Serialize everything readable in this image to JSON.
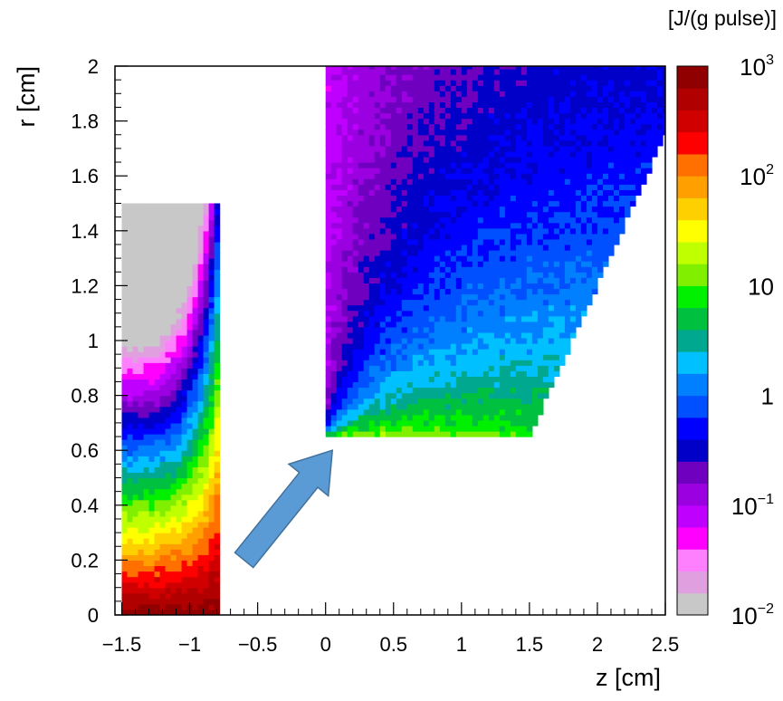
{
  "chart_data": {
    "type": "heatmap",
    "xlabel": "z [cm]",
    "ylabel": "r [cm]",
    "xlim": [
      -1.55,
      2.5
    ],
    "ylim": [
      0,
      2
    ],
    "x_ticks": [
      "−1.5",
      "−1",
      "−0.5",
      "0",
      "0.5",
      "1",
      "1.5",
      "2",
      "2.5"
    ],
    "x_tick_values": [
      -1.5,
      -1,
      -0.5,
      0,
      0.5,
      1,
      1.5,
      2,
      2.5
    ],
    "y_ticks": [
      "0",
      "0.2",
      "0.4",
      "0.6",
      "0.8",
      "1",
      "1.2",
      "1.4",
      "1.6",
      "1.8",
      "2"
    ],
    "y_tick_values": [
      0,
      0.2,
      0.4,
      0.6,
      0.8,
      1,
      1.2,
      1.4,
      1.6,
      1.8,
      2
    ],
    "colorbar": {
      "unit_label": "[J/(g pulse)]",
      "scale": "log",
      "range": [
        0.01,
        1000
      ],
      "labels": [
        {
          "base": "10",
          "exp": "3",
          "value": 1000
        },
        {
          "base": "10",
          "exp": "2",
          "value": 100
        },
        {
          "base": "10",
          "exp": "",
          "value": 10
        },
        {
          "base": "1",
          "exp": "",
          "value": 1
        },
        {
          "base": "10",
          "exp": "−1",
          "value": 0.1
        },
        {
          "base": "10",
          "exp": "−2",
          "value": 0.01
        }
      ],
      "colors": [
        "#c8c8c8",
        "#e0a0e0",
        "#ff80ff",
        "#ff00ff",
        "#c000ff",
        "#9b00e0",
        "#7000c0",
        "#0000c8",
        "#0000ff",
        "#0050ff",
        "#0080ff",
        "#00c0ff",
        "#00a890",
        "#00c040",
        "#00f000",
        "#80f000",
        "#c0ff00",
        "#ffff00",
        "#ffd000",
        "#ffa000",
        "#ff7000",
        "#ff0000",
        "#d00000",
        "#b00000",
        "#900000"
      ]
    },
    "regions": [
      {
        "name": "",
        "z_range": [
          -1.5,
          -0.8
        ],
        "r_range": [
          0,
          1.5
        ],
        "description_levels": "max near r=0 (~10^3), decreasing with r to ~10^-1 at r=1.5"
      },
      {
        "name": "",
        "z_range": [
          0,
          2.5
        ],
        "r_range": [
          0.65,
          2
        ],
        "edge": "lower-right boundary from (1.5, 0.65) to (2.5, 1.75)",
        "description_levels": "max near inner surface r=0.65 (~10-30), decreasing to ~10^-1 at r=2"
      }
    ],
    "annotations": [
      {
        "type": "arrow",
        "from": [
          -0.6,
          0.2
        ],
        "to": [
          0.05,
          0.6
        ],
        "color": "#5b9bd5"
      }
    ]
  }
}
